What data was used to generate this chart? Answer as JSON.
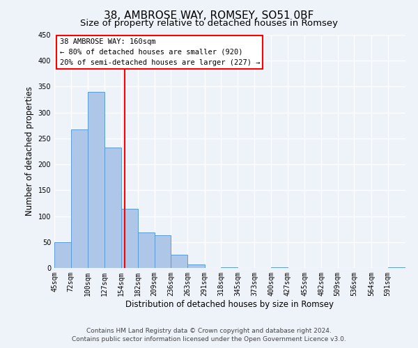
{
  "title": "38, AMBROSE WAY, ROMSEY, SO51 0BF",
  "subtitle": "Size of property relative to detached houses in Romsey",
  "xlabel": "Distribution of detached houses by size in Romsey",
  "ylabel": "Number of detached properties",
  "bin_labels": [
    "45sqm",
    "72sqm",
    "100sqm",
    "127sqm",
    "154sqm",
    "182sqm",
    "209sqm",
    "236sqm",
    "263sqm",
    "291sqm",
    "318sqm",
    "345sqm",
    "373sqm",
    "400sqm",
    "427sqm",
    "455sqm",
    "482sqm",
    "509sqm",
    "536sqm",
    "564sqm",
    "591sqm"
  ],
  "bin_edges": [
    45,
    72,
    100,
    127,
    154,
    182,
    209,
    236,
    263,
    291,
    318,
    345,
    373,
    400,
    427,
    455,
    482,
    509,
    536,
    564,
    591,
    620
  ],
  "bar_heights": [
    50,
    267,
    340,
    232,
    114,
    69,
    63,
    25,
    7,
    0,
    2,
    0,
    0,
    2,
    0,
    0,
    0,
    0,
    0,
    0,
    2
  ],
  "bar_color": "#aec6e8",
  "bar_edge_color": "#5b9bd5",
  "vline_x": 160,
  "vline_color": "red",
  "annotation_title": "38 AMBROSE WAY: 160sqm",
  "annotation_line1": "← 80% of detached houses are smaller (920)",
  "annotation_line2": "20% of semi-detached houses are larger (227) →",
  "ylim": [
    0,
    450
  ],
  "yticks": [
    0,
    50,
    100,
    150,
    200,
    250,
    300,
    350,
    400,
    450
  ],
  "footer_line1": "Contains HM Land Registry data © Crown copyright and database right 2024.",
  "footer_line2": "Contains public sector information licensed under the Open Government Licence v3.0.",
  "background_color": "#eef2f9",
  "grid_color": "#ffffff",
  "title_fontsize": 11,
  "subtitle_fontsize": 9.5,
  "axis_label_fontsize": 8.5,
  "tick_fontsize": 7,
  "annotation_fontsize": 7.5,
  "footer_fontsize": 6.5
}
